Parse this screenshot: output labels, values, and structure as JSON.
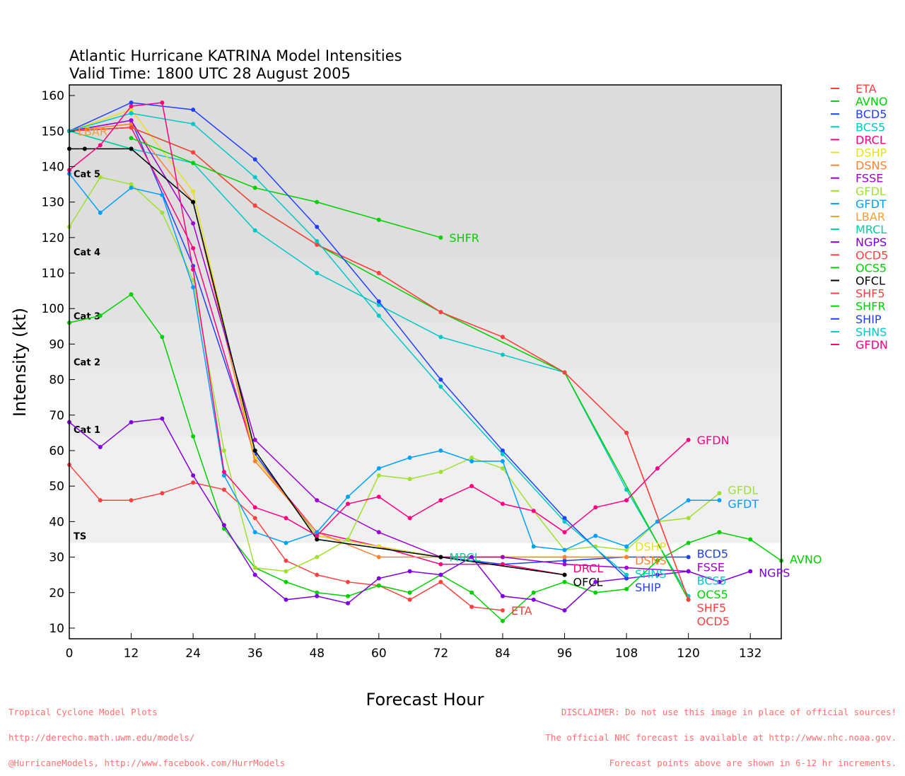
{
  "chart_data": {
    "type": "line",
    "title": "Atlantic Hurricane KATRINA Model Intensities",
    "subtitle": "Valid Time: 1800 UTC 28 August 2005",
    "xlabel": "Forecast Hour",
    "ylabel": "Intensity (kt)",
    "xlim": [
      0,
      138
    ],
    "ylim": [
      7,
      163
    ],
    "xticks": [
      0,
      12,
      24,
      36,
      48,
      60,
      72,
      84,
      96,
      108,
      120,
      132
    ],
    "yticks": [
      10,
      20,
      30,
      40,
      50,
      60,
      70,
      80,
      90,
      100,
      110,
      120,
      130,
      140,
      150,
      160
    ],
    "categories": [
      {
        "label": "Cat 5",
        "min": 136,
        "max": 163,
        "color": "#dcdcdc"
      },
      {
        "label": "Cat 4",
        "min": 114,
        "max": 136,
        "color": "#dedede"
      },
      {
        "label": "Cat 3",
        "min": 96,
        "max": 114,
        "color": "#e2e2e2"
      },
      {
        "label": "Cat 2",
        "min": 83,
        "max": 96,
        "color": "#e7e7e7"
      },
      {
        "label": "Cat 1",
        "min": 64,
        "max": 83,
        "color": "#eaeaea"
      },
      {
        "label": "TS",
        "min": 34,
        "max": 64,
        "color": "#f0f0f0"
      }
    ],
    "legend_position": "right",
    "series": [
      {
        "name": "ETA",
        "color": "#ff4040",
        "points": [
          [
            0,
            56
          ],
          [
            6,
            46
          ],
          [
            12,
            46
          ],
          [
            18,
            48
          ],
          [
            24,
            51
          ],
          [
            30,
            49
          ],
          [
            36,
            41
          ],
          [
            42,
            29
          ],
          [
            48,
            25
          ],
          [
            54,
            23
          ],
          [
            60,
            22
          ],
          [
            66,
            18
          ],
          [
            72,
            23
          ],
          [
            78,
            16
          ],
          [
            84,
            15
          ]
        ]
      },
      {
        "name": "AVNO",
        "color": "#00d000",
        "points": [
          [
            0,
            96
          ],
          [
            6,
            98
          ],
          [
            12,
            104
          ],
          [
            18,
            92
          ],
          [
            24,
            64
          ],
          [
            30,
            38
          ],
          [
            36,
            27
          ],
          [
            42,
            23
          ],
          [
            48,
            20
          ],
          [
            54,
            19
          ],
          [
            60,
            22
          ],
          [
            66,
            20
          ],
          [
            72,
            25
          ],
          [
            78,
            20
          ],
          [
            84,
            12
          ],
          [
            90,
            20
          ],
          [
            96,
            23
          ],
          [
            102,
            20
          ],
          [
            108,
            21
          ],
          [
            114,
            29
          ],
          [
            120,
            34
          ],
          [
            126,
            37
          ],
          [
            132,
            35
          ],
          [
            138,
            29
          ]
        ]
      },
      {
        "name": "BCD5",
        "color": "#2040ff",
        "points": [
          [
            0,
            150
          ],
          [
            12,
            153
          ],
          [
            24,
            112
          ],
          [
            36,
            59
          ],
          [
            48,
            36
          ],
          [
            60,
            33
          ],
          [
            72,
            30
          ],
          [
            84,
            28
          ],
          [
            96,
            29
          ],
          [
            108,
            30
          ],
          [
            120,
            30
          ]
        ]
      },
      {
        "name": "BCS5",
        "color": "#00c8c8",
        "points": [
          [
            0,
            150
          ],
          [
            12,
            145
          ],
          [
            24,
            141
          ],
          [
            36,
            122
          ],
          [
            48,
            110
          ],
          [
            60,
            101
          ],
          [
            72,
            92
          ],
          [
            84,
            87
          ],
          [
            96,
            82
          ],
          [
            108,
            49
          ],
          [
            120,
            19
          ]
        ]
      },
      {
        "name": "DRCL",
        "color": "#ff0080",
        "points": [
          [
            0,
            150
          ],
          [
            12,
            151
          ],
          [
            24,
            117
          ],
          [
            36,
            58
          ],
          [
            48,
            37
          ],
          [
            60,
            33
          ],
          [
            72,
            28
          ],
          [
            84,
            28
          ],
          [
            96,
            25
          ]
        ]
      },
      {
        "name": "DSHP",
        "color": "#e8e020",
        "points": [
          [
            0,
            150
          ],
          [
            12,
            156
          ],
          [
            24,
            133
          ],
          [
            36,
            58
          ],
          [
            48,
            36
          ],
          [
            60,
            33
          ],
          [
            72,
            30
          ],
          [
            84,
            30
          ],
          [
            96,
            30
          ],
          [
            108,
            30
          ]
        ]
      },
      {
        "name": "DSNS",
        "color": "#ff8030",
        "points": [
          [
            0,
            150
          ],
          [
            12,
            152
          ],
          [
            24,
            130
          ],
          [
            36,
            57
          ],
          [
            48,
            37
          ],
          [
            60,
            30
          ],
          [
            72,
            30
          ],
          [
            84,
            30
          ],
          [
            96,
            30
          ],
          [
            108,
            30
          ]
        ]
      },
      {
        "name": "FSSE",
        "color": "#a000d0",
        "points": [
          [
            0,
            150
          ],
          [
            12,
            153
          ],
          [
            24,
            124
          ],
          [
            36,
            63
          ],
          [
            48,
            46
          ],
          [
            60,
            37
          ],
          [
            72,
            30
          ],
          [
            84,
            30
          ],
          [
            96,
            28
          ],
          [
            108,
            27
          ],
          [
            120,
            26
          ]
        ]
      },
      {
        "name": "GFDL",
        "color": "#a0e030",
        "points": [
          [
            0,
            123
          ],
          [
            6,
            137
          ],
          [
            12,
            135
          ],
          [
            18,
            127
          ],
          [
            24,
            108
          ],
          [
            30,
            60
          ],
          [
            36,
            27
          ],
          [
            42,
            26
          ],
          [
            48,
            30
          ],
          [
            54,
            35
          ],
          [
            60,
            53
          ],
          [
            66,
            52
          ],
          [
            72,
            54
          ],
          [
            78,
            58
          ],
          [
            84,
            55
          ],
          [
            90,
            43
          ],
          [
            96,
            32
          ],
          [
            102,
            33
          ],
          [
            108,
            32
          ],
          [
            114,
            40
          ],
          [
            120,
            41
          ],
          [
            126,
            48
          ]
        ]
      },
      {
        "name": "GFDT",
        "color": "#00a0ff",
        "points": [
          [
            0,
            138
          ],
          [
            6,
            127
          ],
          [
            12,
            134
          ],
          [
            18,
            132
          ],
          [
            24,
            106
          ],
          [
            30,
            53
          ],
          [
            36,
            37
          ],
          [
            42,
            34
          ],
          [
            48,
            37
          ],
          [
            54,
            47
          ],
          [
            60,
            55
          ],
          [
            66,
            58
          ],
          [
            72,
            60
          ],
          [
            78,
            57
          ],
          [
            84,
            57
          ],
          [
            90,
            33
          ],
          [
            96,
            32
          ],
          [
            102,
            36
          ],
          [
            108,
            33
          ],
          [
            114,
            40
          ],
          [
            120,
            46
          ],
          [
            126,
            46
          ]
        ]
      },
      {
        "name": "LBAR",
        "color": "#f0a030",
        "points": [
          [
            0,
            150
          ]
        ]
      },
      {
        "name": "MRCL",
        "color": "#00d0a0",
        "points": [
          [
            0,
            150
          ],
          [
            12,
            145
          ],
          [
            24,
            130
          ],
          [
            36,
            60
          ],
          [
            48,
            35
          ],
          [
            72,
            30
          ]
        ]
      },
      {
        "name": "NGPS",
        "color": "#8000e0",
        "points": [
          [
            0,
            68
          ],
          [
            6,
            61
          ],
          [
            12,
            68
          ],
          [
            18,
            69
          ],
          [
            24,
            53
          ],
          [
            30,
            39
          ],
          [
            36,
            25
          ],
          [
            42,
            18
          ],
          [
            48,
            19
          ],
          [
            54,
            17
          ],
          [
            60,
            24
          ],
          [
            66,
            26
          ],
          [
            72,
            25
          ],
          [
            78,
            30
          ],
          [
            84,
            19
          ],
          [
            90,
            18
          ],
          [
            96,
            15
          ],
          [
            102,
            23
          ],
          [
            108,
            24
          ],
          [
            114,
            25
          ],
          [
            120,
            26
          ],
          [
            126,
            23
          ],
          [
            132,
            26
          ]
        ]
      },
      {
        "name": "OCD5",
        "color": "#ff4040",
        "points": [
          [
            0,
            150
          ],
          [
            12,
            151
          ],
          [
            24,
            144
          ],
          [
            36,
            129
          ],
          [
            48,
            118
          ],
          [
            60,
            110
          ],
          [
            72,
            99
          ],
          [
            84,
            92
          ],
          [
            96,
            82
          ],
          [
            108,
            65
          ],
          [
            120,
            18
          ]
        ]
      },
      {
        "name": "OCS5",
        "color": "#00d000",
        "points": [
          [
            0,
            150
          ],
          [
            12,
            151
          ],
          [
            24,
            144
          ],
          [
            36,
            129
          ],
          [
            48,
            118
          ],
          [
            72,
            99
          ],
          [
            96,
            82
          ],
          [
            120,
            18
          ]
        ]
      },
      {
        "name": "OFCL",
        "color": "#000000",
        "points": [
          [
            0,
            145
          ],
          [
            3,
            145
          ],
          [
            12,
            145
          ],
          [
            24,
            130
          ],
          [
            36,
            60
          ],
          [
            48,
            35
          ],
          [
            72,
            30
          ],
          [
            96,
            25
          ]
        ]
      },
      {
        "name": "SHF5",
        "color": "#ff4040",
        "points": [
          [
            0,
            150
          ],
          [
            12,
            151
          ],
          [
            24,
            144
          ],
          [
            36,
            129
          ],
          [
            48,
            118
          ],
          [
            60,
            110
          ],
          [
            72,
            99
          ],
          [
            84,
            92
          ],
          [
            96,
            82
          ],
          [
            108,
            65
          ],
          [
            120,
            18
          ]
        ]
      },
      {
        "name": "SHFR",
        "color": "#00d000",
        "points": [
          [
            12,
            148
          ],
          [
            24,
            141
          ],
          [
            36,
            134
          ],
          [
            48,
            130
          ],
          [
            60,
            125
          ],
          [
            72,
            120
          ]
        ]
      },
      {
        "name": "SHIP",
        "color": "#2040ff",
        "points": [
          [
            0,
            150
          ],
          [
            12,
            158
          ],
          [
            24,
            156
          ],
          [
            36,
            142
          ],
          [
            48,
            123
          ],
          [
            60,
            102
          ],
          [
            72,
            80
          ],
          [
            84,
            60
          ],
          [
            96,
            41
          ],
          [
            108,
            24
          ]
        ]
      },
      {
        "name": "SHNS",
        "color": "#00c8c8",
        "points": [
          [
            0,
            150
          ],
          [
            12,
            155
          ],
          [
            24,
            152
          ],
          [
            36,
            137
          ],
          [
            48,
            119
          ],
          [
            60,
            98
          ],
          [
            72,
            78
          ],
          [
            84,
            59
          ],
          [
            96,
            40
          ],
          [
            108,
            25
          ]
        ]
      },
      {
        "name": "GFDN",
        "color": "#ff0080",
        "points": [
          [
            0,
            139
          ],
          [
            6,
            146
          ],
          [
            12,
            157
          ],
          [
            18,
            158
          ],
          [
            24,
            111
          ],
          [
            30,
            54
          ],
          [
            36,
            44
          ],
          [
            42,
            41
          ],
          [
            48,
            36
          ],
          [
            54,
            45
          ],
          [
            60,
            47
          ],
          [
            66,
            41
          ],
          [
            72,
            46
          ],
          [
            78,
            50
          ],
          [
            84,
            45
          ],
          [
            90,
            43
          ],
          [
            96,
            37
          ],
          [
            102,
            44
          ],
          [
            108,
            46
          ],
          [
            114,
            55
          ],
          [
            120,
            63
          ]
        ]
      }
    ]
  },
  "footer": {
    "left": [
      "Tropical Cyclone Model Plots",
      "http://derecho.math.uwm.edu/models/",
      "@HurricaneModels, http://www.facebook.com/HurrModels"
    ],
    "right": [
      "DISCLAIMER: Do not use this image in place of official sources!",
      "The official NHC forecast is available at http://www.nhc.noaa.gov.",
      "Forecast points above are shown in 6-12 hr increments."
    ]
  }
}
